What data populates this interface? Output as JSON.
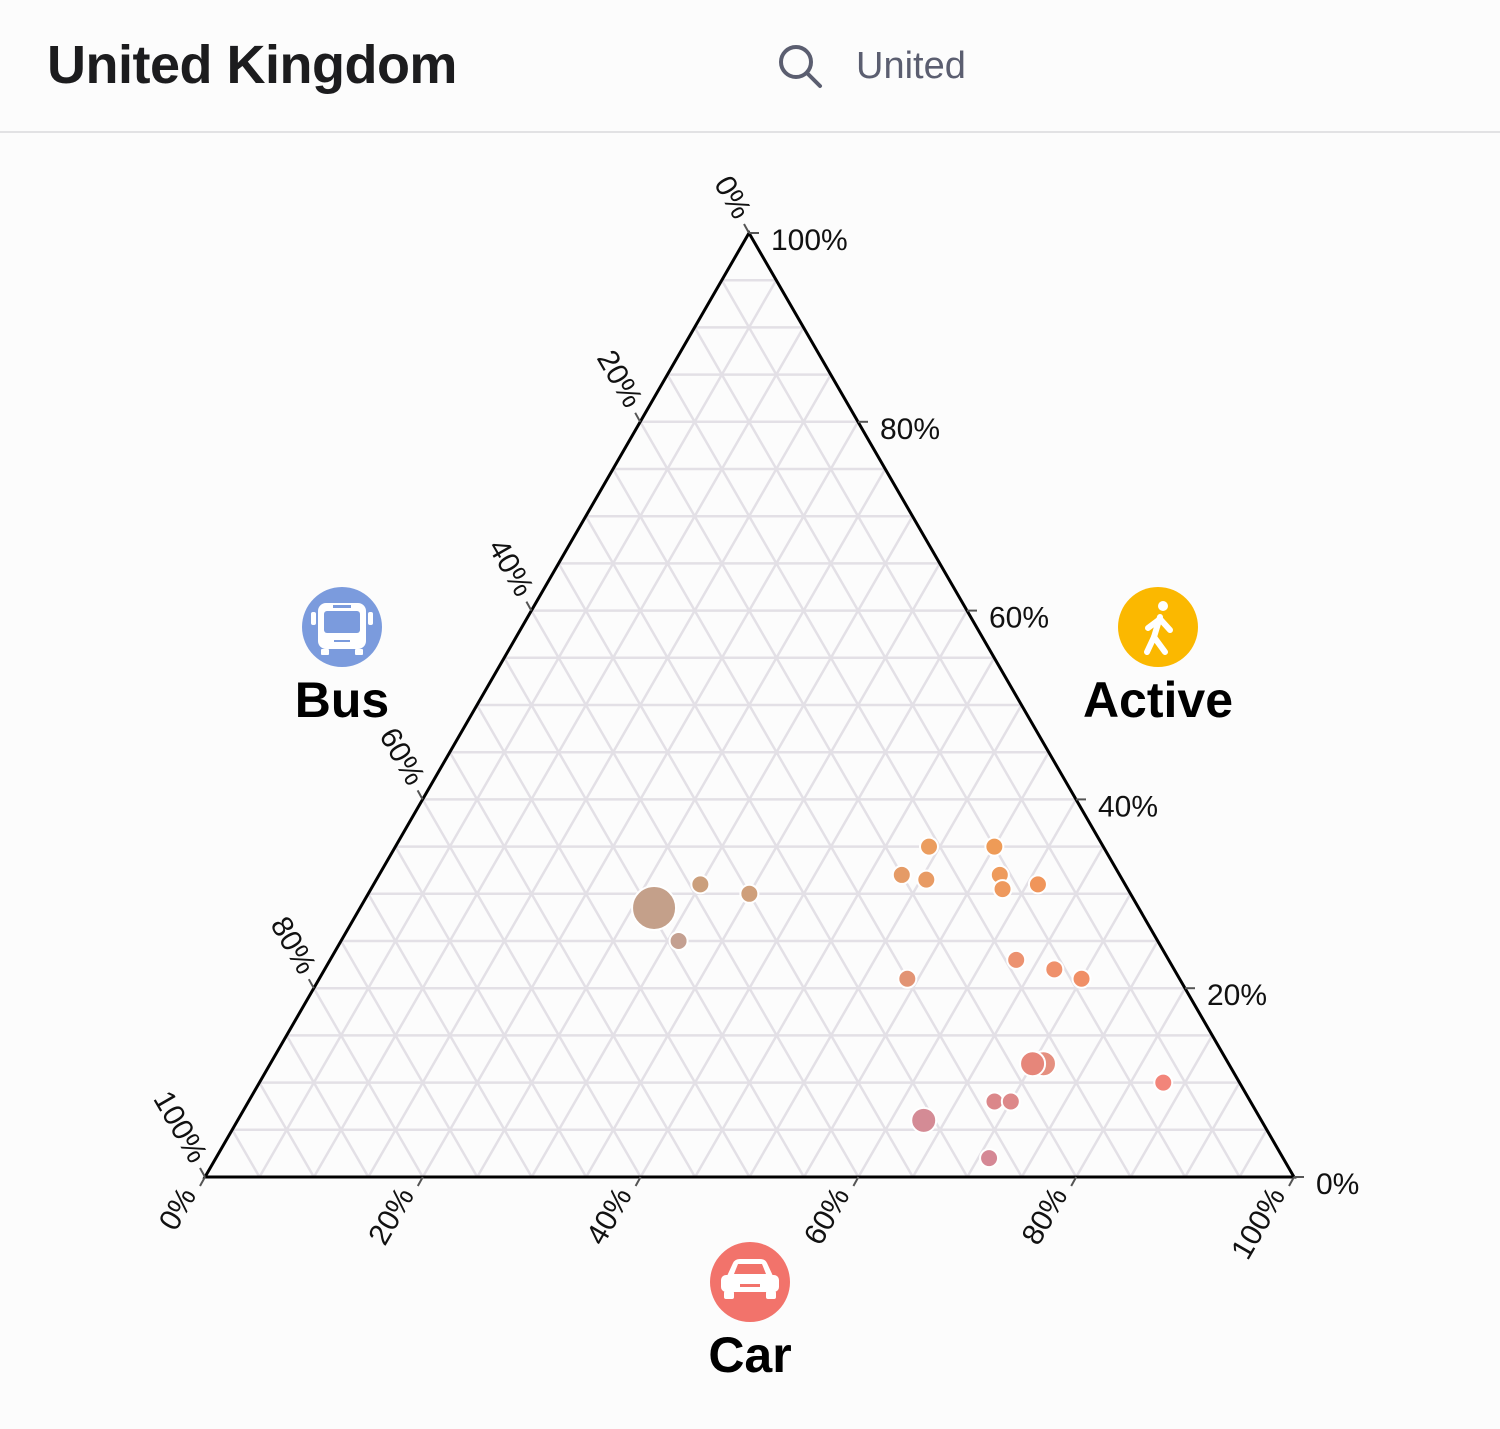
{
  "header": {
    "title": "United Kingdom",
    "search_icon": "search-icon",
    "search_value": "United"
  },
  "chart_data": {
    "type": "ternary-scatter",
    "axes": {
      "top": {
        "name": "Active",
        "icon": "walking-person-icon",
        "color": "#fbb800"
      },
      "left": {
        "name": "Bus",
        "icon": "bus-icon",
        "color": "#7b9bdd"
      },
      "bottom": {
        "name": "Car",
        "icon": "car-icon",
        "color": "#f2736b"
      }
    },
    "active_ticks": [
      "0%",
      "20%",
      "40%",
      "60%",
      "80%",
      "100%"
    ],
    "bus_ticks": [
      "0%",
      "20%",
      "40%",
      "60%",
      "80%",
      "100%"
    ],
    "car_ticks": [
      "0%",
      "20%",
      "40%",
      "60%",
      "80%",
      "100%"
    ],
    "grid": true,
    "grid_step_percent": 5,
    "points": [
      {
        "active": 28.5,
        "car": 27,
        "bus": 44.5,
        "size": "large",
        "color": "#c4a08a"
      },
      {
        "active": 31,
        "car": 30,
        "bus": 39,
        "size": "small",
        "color": "#cb9f7c"
      },
      {
        "active": 30,
        "car": 35,
        "bus": 35,
        "size": "small",
        "color": "#cf9f7a"
      },
      {
        "active": 25,
        "car": 31,
        "bus": 44,
        "size": "small",
        "color": "#c4a091"
      },
      {
        "active": 35,
        "car": 49,
        "bus": 16,
        "size": "small",
        "color": "#eb9d5f"
      },
      {
        "active": 35,
        "car": 55,
        "bus": 10,
        "size": "small",
        "color": "#ee9b57"
      },
      {
        "active": 32,
        "car": 48,
        "bus": 20,
        "size": "small",
        "color": "#e59b66"
      },
      {
        "active": 31.5,
        "car": 50.5,
        "bus": 18,
        "size": "small",
        "color": "#e89b64"
      },
      {
        "active": 32,
        "car": 57,
        "bus": 11,
        "size": "small",
        "color": "#ee9b5c"
      },
      {
        "active": 30.5,
        "car": 58,
        "bus": 11.5,
        "size": "small",
        "color": "#ee995e"
      },
      {
        "active": 31,
        "car": 61,
        "bus": 8,
        "size": "small",
        "color": "#f0955a"
      },
      {
        "active": 21,
        "car": 54,
        "bus": 25,
        "size": "small",
        "color": "#e29474"
      },
      {
        "active": 23,
        "car": 63,
        "bus": 14,
        "size": "small",
        "color": "#ec9270"
      },
      {
        "active": 22,
        "car": 67,
        "bus": 11,
        "size": "small",
        "color": "#ef916c"
      },
      {
        "active": 21,
        "car": 70,
        "bus": 9,
        "size": "small",
        "color": "#f08f66"
      },
      {
        "active": 12,
        "car": 71,
        "bus": 17,
        "size": "medium",
        "color": "#e59080"
      },
      {
        "active": 12,
        "car": 70,
        "bus": 18,
        "size": "medium",
        "color": "#e6867a"
      },
      {
        "active": 10,
        "car": 83,
        "bus": 7,
        "size": "small",
        "color": "#f2857a"
      },
      {
        "active": 8,
        "car": 68.5,
        "bus": 23.5,
        "size": "small",
        "color": "#db878a"
      },
      {
        "active": 8,
        "car": 70,
        "bus": 22,
        "size": "small",
        "color": "#dd8889"
      },
      {
        "active": 6,
        "car": 63,
        "bus": 31,
        "size": "medium",
        "color": "#d48b95"
      },
      {
        "active": 2,
        "car": 71,
        "bus": 27,
        "size": "small",
        "color": "#d58895"
      }
    ]
  }
}
